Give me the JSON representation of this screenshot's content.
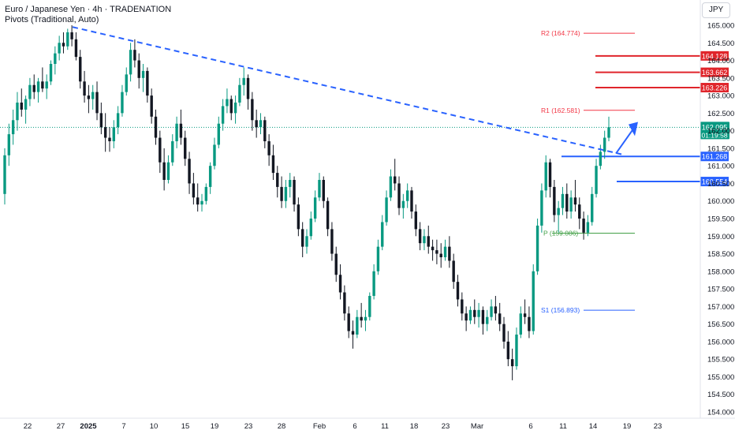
{
  "header": {
    "title": "Euro / Japanese Yen · 4h · TRADENATION",
    "indicator": "Pivots (Traditional, Auto)"
  },
  "currency_button": "JPY",
  "colors": {
    "up": "#089981",
    "down": "#131722",
    "wick": "#131722",
    "trendline": "#2962ff",
    "resistance": "#e0252b",
    "support": "#2962ff",
    "pivot": "#43a047",
    "r_pivot": "#f23645",
    "s_pivot": "#2962ff",
    "price_label": "#089981"
  },
  "chart_data": {
    "type": "candlestick",
    "symbol": "EUR/JPY",
    "timeframe": "4h",
    "y_axis_ticks": [
      165.0,
      164.5,
      164.0,
      163.5,
      163.0,
      162.5,
      162.0,
      161.5,
      161.0,
      160.5,
      160.0,
      159.5,
      159.0,
      158.5,
      158.0,
      157.5,
      157.0,
      156.5,
      156.0,
      155.5,
      155.0,
      154.5,
      154.0
    ],
    "y_tick_labels": [
      "165.000",
      "164.500",
      "164.000",
      "163.500",
      "163.000",
      "162.500",
      "162.000",
      "161.500",
      "161.000",
      "160.500",
      "160.000",
      "159.500",
      "159.000",
      "158.500",
      "158.000",
      "157.500",
      "157.000",
      "156.500",
      "156.000",
      "155.500",
      "155.000",
      "154.500",
      "154.000"
    ],
    "ylim": [
      153.8,
      165.35
    ],
    "x_tick_labels": [
      "22",
      "27",
      "2025",
      "7",
      "10",
      "15",
      "19",
      "23",
      "28",
      "Feb",
      "6",
      "11",
      "18",
      "23",
      "Mar",
      "6",
      "11",
      "14",
      "19",
      "23"
    ],
    "current_price": {
      "value": "162.095",
      "countdown": "01:19:58",
      "y": 162.095
    },
    "pivots": [
      {
        "label": "R2 (164.774)",
        "value": 164.774,
        "kind": "r"
      },
      {
        "label": "R1 (162.581)",
        "value": 162.581,
        "kind": "r"
      },
      {
        "label": "P (159.086)",
        "value": 159.086,
        "kind": "p"
      },
      {
        "label": "S1 (156.893)",
        "value": 156.893,
        "kind": "s"
      }
    ],
    "resistance_levels": [
      {
        "label": "164.128",
        "value": 164.128
      },
      {
        "label": "163.662",
        "value": 163.662
      },
      {
        "label": "163.226",
        "value": 163.226
      }
    ],
    "support_levels": [
      {
        "label": "161.268",
        "value": 161.268
      },
      {
        "label": "160.554",
        "value": 160.554
      }
    ],
    "trendline": {
      "start": 164.95,
      "end": 161.33
    },
    "candles": [
      [
        160.2,
        161.5,
        159.9,
        161.3
      ],
      [
        161.3,
        162.2,
        161.0,
        161.9
      ],
      [
        161.9,
        162.6,
        161.6,
        162.3
      ],
      [
        162.3,
        163.1,
        162.0,
        162.8
      ],
      [
        162.8,
        163.2,
        162.4,
        162.6
      ],
      [
        162.6,
        163.0,
        162.2,
        162.9
      ],
      [
        162.9,
        163.5,
        162.7,
        163.3
      ],
      [
        163.3,
        163.6,
        162.9,
        163.1
      ],
      [
        163.1,
        163.5,
        162.8,
        163.4
      ],
      [
        163.4,
        163.8,
        163.1,
        163.2
      ],
      [
        163.2,
        163.6,
        162.9,
        163.4
      ],
      [
        163.4,
        164.0,
        163.3,
        163.9
      ],
      [
        163.9,
        164.4,
        163.6,
        164.2
      ],
      [
        164.2,
        164.7,
        164.0,
        164.5
      ],
      [
        164.5,
        164.8,
        164.2,
        164.4
      ],
      [
        164.4,
        164.9,
        164.3,
        164.8
      ],
      [
        164.8,
        165.0,
        164.4,
        164.6
      ],
      [
        164.6,
        164.8,
        164.0,
        164.1
      ],
      [
        164.1,
        164.3,
        163.2,
        163.4
      ],
      [
        163.4,
        163.7,
        162.8,
        163.0
      ],
      [
        163.0,
        163.3,
        162.5,
        162.9
      ],
      [
        162.9,
        163.3,
        162.6,
        163.1
      ],
      [
        163.1,
        163.4,
        162.3,
        162.5
      ],
      [
        162.5,
        162.8,
        161.9,
        162.1
      ],
      [
        162.1,
        162.5,
        161.4,
        161.8
      ],
      [
        161.8,
        162.1,
        161.4,
        161.7
      ],
      [
        161.7,
        162.3,
        161.5,
        162.1
      ],
      [
        162.1,
        162.7,
        161.9,
        162.5
      ],
      [
        162.5,
        163.3,
        162.4,
        163.1
      ],
      [
        163.1,
        163.8,
        163.0,
        163.6
      ],
      [
        163.6,
        164.5,
        163.4,
        164.3
      ],
      [
        164.3,
        164.6,
        163.8,
        164.0
      ],
      [
        164.0,
        164.2,
        163.2,
        163.5
      ],
      [
        163.5,
        163.9,
        163.1,
        163.7
      ],
      [
        163.7,
        163.8,
        162.8,
        163.0
      ],
      [
        163.0,
        163.2,
        162.2,
        162.4
      ],
      [
        162.4,
        162.6,
        161.6,
        161.8
      ],
      [
        161.8,
        162.0,
        160.8,
        161.1
      ],
      [
        161.1,
        161.5,
        160.3,
        160.6
      ],
      [
        160.6,
        161.3,
        160.5,
        161.1
      ],
      [
        161.1,
        161.9,
        161.0,
        161.7
      ],
      [
        161.7,
        162.4,
        161.5,
        162.2
      ],
      [
        162.2,
        162.6,
        161.6,
        161.8
      ],
      [
        161.8,
        162.0,
        161.0,
        161.2
      ],
      [
        161.2,
        161.4,
        160.2,
        160.5
      ],
      [
        160.5,
        160.8,
        159.9,
        160.1
      ],
      [
        160.1,
        160.5,
        159.7,
        159.9
      ],
      [
        159.9,
        160.2,
        159.7,
        160.0
      ],
      [
        160.0,
        160.5,
        159.9,
        160.4
      ],
      [
        160.4,
        161.1,
        160.2,
        161.0
      ],
      [
        161.0,
        161.8,
        160.9,
        161.6
      ],
      [
        161.6,
        162.4,
        161.5,
        162.2
      ],
      [
        162.2,
        162.9,
        162.0,
        162.7
      ],
      [
        162.7,
        163.2,
        162.5,
        162.9
      ],
      [
        162.9,
        163.0,
        162.3,
        162.5
      ],
      [
        162.5,
        163.0,
        162.2,
        162.8
      ],
      [
        162.8,
        163.5,
        162.7,
        163.3
      ],
      [
        163.3,
        163.8,
        163.0,
        163.5
      ],
      [
        163.5,
        163.6,
        162.6,
        162.9
      ],
      [
        162.9,
        163.1,
        162.0,
        162.3
      ],
      [
        162.3,
        162.6,
        161.8,
        162.1
      ],
      [
        162.1,
        162.5,
        161.9,
        162.3
      ],
      [
        162.3,
        162.4,
        161.5,
        161.7
      ],
      [
        161.7,
        161.9,
        161.0,
        161.3
      ],
      [
        161.3,
        161.6,
        160.6,
        160.8
      ],
      [
        160.8,
        161.0,
        160.1,
        160.4
      ],
      [
        160.4,
        160.7,
        159.8,
        160.0
      ],
      [
        160.0,
        160.6,
        159.8,
        160.4
      ],
      [
        160.4,
        160.8,
        160.1,
        160.6
      ],
      [
        160.6,
        160.7,
        159.7,
        159.9
      ],
      [
        159.9,
        160.1,
        159.0,
        159.2
      ],
      [
        159.2,
        159.4,
        158.4,
        158.7
      ],
      [
        158.7,
        159.2,
        158.5,
        159.0
      ],
      [
        159.0,
        159.7,
        158.9,
        159.5
      ],
      [
        159.5,
        160.3,
        159.4,
        160.1
      ],
      [
        160.1,
        160.8,
        160.0,
        160.6
      ],
      [
        160.6,
        160.7,
        159.8,
        160.0
      ],
      [
        160.0,
        160.1,
        159.0,
        159.2
      ],
      [
        159.2,
        159.4,
        158.3,
        158.5
      ],
      [
        158.5,
        158.7,
        157.7,
        157.9
      ],
      [
        157.9,
        158.2,
        157.2,
        157.4
      ],
      [
        157.4,
        157.6,
        156.6,
        156.8
      ],
      [
        156.8,
        157.0,
        156.1,
        156.3
      ],
      [
        156.3,
        156.6,
        155.8,
        156.2
      ],
      [
        156.2,
        156.9,
        156.1,
        156.7
      ],
      [
        156.7,
        157.1,
        156.4,
        156.6
      ],
      [
        156.6,
        156.9,
        156.3,
        156.7
      ],
      [
        156.7,
        157.4,
        156.6,
        157.3
      ],
      [
        157.3,
        158.2,
        157.2,
        158.0
      ],
      [
        158.0,
        158.9,
        157.9,
        158.7
      ],
      [
        158.7,
        159.6,
        158.6,
        159.4
      ],
      [
        159.4,
        160.3,
        159.3,
        160.1
      ],
      [
        160.1,
        160.9,
        160.0,
        160.7
      ],
      [
        160.7,
        161.2,
        160.3,
        160.5
      ],
      [
        160.5,
        160.7,
        159.6,
        159.8
      ],
      [
        159.8,
        160.2,
        159.5,
        160.0
      ],
      [
        160.0,
        160.5,
        159.8,
        160.3
      ],
      [
        160.3,
        160.4,
        159.5,
        159.7
      ],
      [
        159.7,
        159.9,
        159.0,
        159.2
      ],
      [
        159.2,
        159.4,
        158.6,
        158.8
      ],
      [
        158.8,
        159.2,
        158.6,
        159.0
      ],
      [
        159.0,
        159.3,
        158.5,
        158.7
      ],
      [
        158.7,
        158.9,
        158.3,
        158.6
      ],
      [
        158.6,
        158.9,
        158.2,
        158.5
      ],
      [
        158.5,
        158.8,
        158.1,
        158.4
      ],
      [
        158.4,
        158.9,
        158.3,
        158.7
      ],
      [
        158.7,
        159.0,
        158.1,
        158.3
      ],
      [
        158.3,
        158.5,
        157.5,
        157.7
      ],
      [
        157.7,
        157.9,
        157.0,
        157.2
      ],
      [
        157.2,
        157.4,
        156.6,
        156.8
      ],
      [
        156.8,
        157.0,
        156.3,
        156.6
      ],
      [
        156.6,
        157.0,
        156.5,
        156.9
      ],
      [
        156.9,
        157.2,
        156.5,
        156.7
      ],
      [
        156.7,
        157.1,
        156.4,
        156.9
      ],
      [
        156.9,
        157.0,
        156.2,
        156.5
      ],
      [
        156.5,
        156.9,
        156.3,
        156.7
      ],
      [
        156.7,
        157.2,
        156.6,
        157.0
      ],
      [
        157.0,
        157.3,
        156.6,
        156.8
      ],
      [
        156.8,
        157.1,
        156.3,
        156.5
      ],
      [
        156.5,
        156.7,
        155.8,
        156.0
      ],
      [
        156.0,
        156.3,
        155.3,
        155.5
      ],
      [
        155.5,
        155.8,
        154.9,
        155.3
      ],
      [
        155.3,
        156.4,
        155.2,
        156.2
      ],
      [
        156.2,
        157.0,
        156.1,
        156.8
      ],
      [
        156.8,
        157.2,
        156.5,
        156.7
      ],
      [
        156.7,
        157.0,
        156.1,
        156.3
      ],
      [
        156.3,
        158.2,
        156.2,
        158.0
      ],
      [
        158.0,
        159.5,
        157.9,
        159.3
      ],
      [
        159.3,
        160.5,
        159.1,
        160.3
      ],
      [
        160.3,
        161.3,
        160.1,
        161.1
      ],
      [
        161.1,
        161.2,
        160.1,
        160.4
      ],
      [
        160.4,
        160.6,
        159.4,
        159.6
      ],
      [
        159.6,
        160.0,
        159.1,
        159.8
      ],
      [
        159.8,
        160.4,
        159.6,
        160.2
      ],
      [
        160.2,
        160.5,
        159.5,
        159.7
      ],
      [
        159.7,
        160.3,
        159.5,
        160.1
      ],
      [
        160.1,
        160.6,
        159.7,
        159.9
      ],
      [
        159.9,
        160.1,
        159.2,
        159.5
      ],
      [
        159.5,
        159.7,
        158.9,
        159.1
      ],
      [
        159.1,
        159.6,
        159.0,
        159.4
      ],
      [
        159.4,
        160.4,
        159.3,
        160.2
      ],
      [
        160.2,
        161.2,
        160.1,
        161.0
      ],
      [
        161.0,
        161.6,
        160.9,
        161.4
      ],
      [
        161.4,
        162.0,
        161.2,
        161.8
      ],
      [
        161.8,
        162.4,
        161.7,
        162.1
      ]
    ]
  }
}
